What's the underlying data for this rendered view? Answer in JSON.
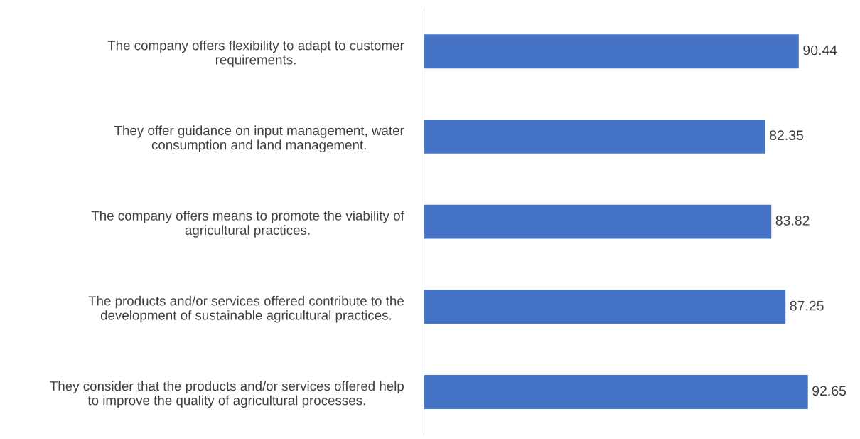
{
  "chart_data": {
    "type": "bar",
    "orientation": "horizontal",
    "categories": [
      "The company offers flexibility to adapt to customer\nrequirements.",
      "They offer guidance on input management, water\nconsumption and land management.",
      "The company offers means to promote the viability of\nagricultural practices.",
      "The products and/or services offered contribute to the\ndevelopment of sustainable agricultural practices.",
      "They consider that the products and/or services offered help\nto improve the quality of agricultural processes."
    ],
    "values": [
      90.44,
      82.35,
      83.82,
      87.25,
      92.65
    ],
    "color": "#4472c4",
    "data_labels": true,
    "tick_labels": "y",
    "grid": false,
    "legend": false
  }
}
